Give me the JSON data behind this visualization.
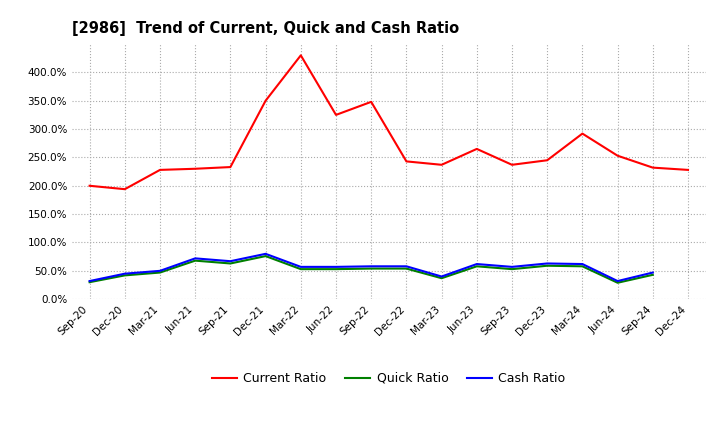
{
  "title": "[2986]  Trend of Current, Quick and Cash Ratio",
  "x_labels": [
    "Sep-20",
    "Dec-20",
    "Mar-21",
    "Jun-21",
    "Sep-21",
    "Dec-21",
    "Mar-22",
    "Jun-22",
    "Sep-22",
    "Dec-22",
    "Mar-23",
    "Jun-23",
    "Sep-23",
    "Dec-23",
    "Mar-24",
    "Jun-24",
    "Sep-24",
    "Dec-24"
  ],
  "current_ratio": [
    200.0,
    194.0,
    228.0,
    230.0,
    233.0,
    350.0,
    430.0,
    325.0,
    348.0,
    243.0,
    237.0,
    265.0,
    237.0,
    245.0,
    292.0,
    253.0,
    232.0,
    228.0
  ],
  "quick_ratio": [
    30.0,
    42.0,
    47.0,
    68.0,
    63.0,
    76.0,
    53.0,
    53.0,
    54.0,
    54.0,
    37.0,
    58.0,
    53.0,
    59.0,
    58.0,
    29.0,
    43.0,
    null
  ],
  "cash_ratio": [
    32.0,
    45.0,
    50.0,
    72.0,
    67.0,
    80.0,
    57.0,
    57.0,
    58.0,
    58.0,
    40.0,
    62.0,
    57.0,
    63.0,
    62.0,
    32.0,
    47.0,
    null
  ],
  "current_color": "#FF0000",
  "quick_color": "#008000",
  "cash_color": "#0000FF",
  "bg_color": "#FFFFFF",
  "plot_bg_color": "#FFFFFF",
  "grid_color": "#AAAAAA",
  "ylim": [
    0,
    450
  ],
  "yticks": [
    0,
    50,
    100,
    150,
    200,
    250,
    300,
    350,
    400
  ],
  "legend_labels": [
    "Current Ratio",
    "Quick Ratio",
    "Cash Ratio"
  ]
}
